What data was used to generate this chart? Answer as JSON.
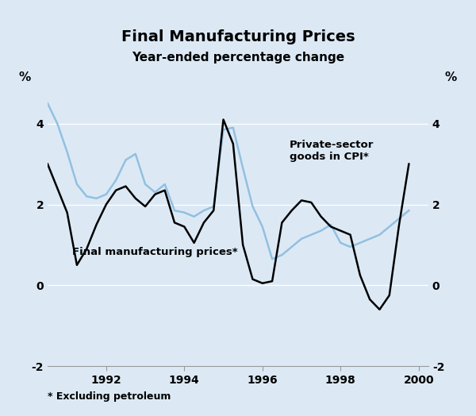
{
  "title": "Final Manufacturing Prices",
  "subtitle": "Year-ended percentage change",
  "footnote": "* Excluding petroleum",
  "ylabel_left": "%",
  "ylabel_right": "%",
  "ylim": [
    -2,
    5
  ],
  "yticks": [
    -2,
    0,
    2,
    4
  ],
  "xlim_start": 1990.5,
  "xlim_end": 2000.25,
  "xticks": [
    1992,
    1994,
    1996,
    1998,
    2000
  ],
  "background_color": "#dce9f5",
  "plot_bg_color": "#dce9f5",
  "line1_color": "#000000",
  "line2_color": "#92c0e0",
  "line1_label": "Final manufacturing prices*",
  "line2_label": "Private-sector\ngoods in CPI*",
  "final_mfg_x": [
    1990.5,
    1990.75,
    1991.0,
    1991.25,
    1991.5,
    1991.75,
    1992.0,
    1992.25,
    1992.5,
    1992.75,
    1993.0,
    1993.25,
    1993.5,
    1993.75,
    1994.0,
    1994.25,
    1994.5,
    1994.75,
    1995.0,
    1995.25,
    1995.5,
    1995.75,
    1996.0,
    1996.25,
    1996.5,
    1996.75,
    1997.0,
    1997.25,
    1997.5,
    1997.75,
    1998.0,
    1998.25,
    1998.5,
    1998.75,
    1999.0,
    1999.25,
    1999.5,
    1999.75
  ],
  "final_mfg_y": [
    3.0,
    2.4,
    1.8,
    0.5,
    0.9,
    1.5,
    2.0,
    2.35,
    2.45,
    2.15,
    1.95,
    2.25,
    2.35,
    1.55,
    1.45,
    1.05,
    1.55,
    1.85,
    4.1,
    3.5,
    1.0,
    0.15,
    0.05,
    0.1,
    1.55,
    1.85,
    2.1,
    2.05,
    1.7,
    1.45,
    1.35,
    1.25,
    0.25,
    -0.35,
    -0.6,
    -0.25,
    1.5,
    3.0
  ],
  "cpi_x": [
    1990.5,
    1990.75,
    1991.0,
    1991.25,
    1991.5,
    1991.75,
    1992.0,
    1992.25,
    1992.5,
    1992.75,
    1993.0,
    1993.25,
    1993.5,
    1993.75,
    1994.0,
    1994.25,
    1994.5,
    1994.75,
    1995.0,
    1995.25,
    1995.5,
    1995.75,
    1996.0,
    1996.25,
    1996.5,
    1996.75,
    1997.0,
    1997.25,
    1997.5,
    1997.75,
    1998.0,
    1998.25,
    1998.5,
    1998.75,
    1999.0,
    1999.25,
    1999.5,
    1999.75
  ],
  "cpi_y": [
    4.5,
    4.0,
    3.3,
    2.5,
    2.2,
    2.15,
    2.25,
    2.6,
    3.1,
    3.25,
    2.5,
    2.3,
    2.5,
    1.85,
    1.8,
    1.7,
    1.85,
    1.95,
    3.85,
    3.9,
    2.9,
    1.95,
    1.45,
    0.65,
    0.75,
    0.95,
    1.15,
    1.25,
    1.35,
    1.5,
    1.05,
    0.95,
    1.05,
    1.15,
    1.25,
    1.45,
    1.65,
    1.85
  ]
}
